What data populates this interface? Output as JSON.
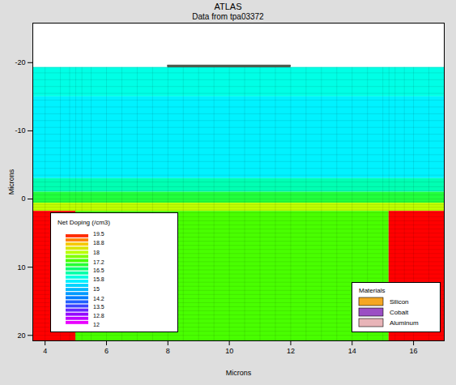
{
  "chart_data": {
    "type": "heatmap",
    "title": "ATLAS",
    "subtitle": "Data from tpa03372",
    "x_label": "Microns",
    "y_label": "Microns",
    "xlim": [
      3.6,
      17
    ],
    "ylim": [
      20.8,
      -25.8
    ],
    "xticks": [
      4,
      6,
      8,
      10,
      12,
      14,
      16
    ],
    "yticks": [
      -20,
      -10,
      0,
      10,
      20
    ],
    "cells": [
      {
        "x1": 3.6,
        "x2": 17,
        "y1": -19.3,
        "y2": -15,
        "value": 15.9
      },
      {
        "x1": 3.6,
        "x2": 17,
        "y1": -15,
        "y2": -3,
        "value": 15.6
      },
      {
        "x1": 3.6,
        "x2": 17,
        "y1": -3,
        "y2": -1,
        "value": 16.2
      },
      {
        "x1": 3.6,
        "x2": 17,
        "y1": -1,
        "y2": 0.6,
        "value": 16.9
      },
      {
        "x1": 3.6,
        "x2": 17,
        "y1": 0.6,
        "y2": 1.8,
        "value": 18.0
      },
      {
        "x1": 3.6,
        "x2": 5,
        "y1": 1.8,
        "y2": 20.8,
        "value": 19.5
      },
      {
        "x1": 5,
        "x2": 15.2,
        "y1": 1.8,
        "y2": 20.8,
        "value": 17.3
      },
      {
        "x1": 15.2,
        "x2": 17,
        "y1": 1.8,
        "y2": 20.8,
        "value": 19.5
      }
    ],
    "electrodes": [
      {
        "x1": 8,
        "x2": 12,
        "y1": -19.6,
        "y2": -19.3,
        "color": "#556b55"
      }
    ],
    "mesh": {
      "x": [
        4,
        4.5,
        4.8,
        5,
        5.2,
        5.5,
        6,
        6.5,
        7,
        7.5,
        8,
        8.5,
        9,
        9.5,
        10,
        10.5,
        11,
        11.5,
        12,
        12.5,
        13,
        13.5,
        14,
        14.5,
        15,
        15.2,
        15.4,
        15.7,
        16,
        16.5
      ],
      "y": [
        -19.3,
        -18.5,
        -17.5,
        -16.5,
        -15.5,
        -14.5,
        -13.5,
        -12.5,
        -11.5,
        -10.5,
        -9.5,
        -8.5,
        -7.5,
        -6.5,
        -5.5,
        -4.5,
        -3.5,
        -2.5,
        -1.8,
        -1.2,
        -0.6,
        0,
        0.4,
        0.8,
        1.2,
        1.6,
        2,
        2.6,
        3.2,
        3.8,
        4.4,
        5,
        5.6,
        6.2,
        6.8,
        7.4,
        8,
        8.6,
        9.2,
        9.8,
        10.4,
        11,
        11.6,
        12.2,
        12.8,
        13.4,
        14,
        14.6,
        15.2,
        15.8,
        16.4,
        17,
        17.6,
        18.2,
        18.8,
        19.4,
        20,
        20.6
      ]
    },
    "colorbar": {
      "title": "Net Doping (/cm3)",
      "range": [
        12,
        19.5
      ],
      "ticks": [
        19.5,
        18.8,
        18,
        17.2,
        16.5,
        15.8,
        15,
        14.2,
        13.5,
        12.8,
        12
      ]
    },
    "materials": {
      "title": "Materials",
      "items": [
        {
          "name": "Silicon",
          "color": "#f5a623"
        },
        {
          "name": "Cobalt",
          "color": "#9b4fc4"
        },
        {
          "name": "Aluminum",
          "color": "#e8b4b8"
        }
      ]
    }
  }
}
